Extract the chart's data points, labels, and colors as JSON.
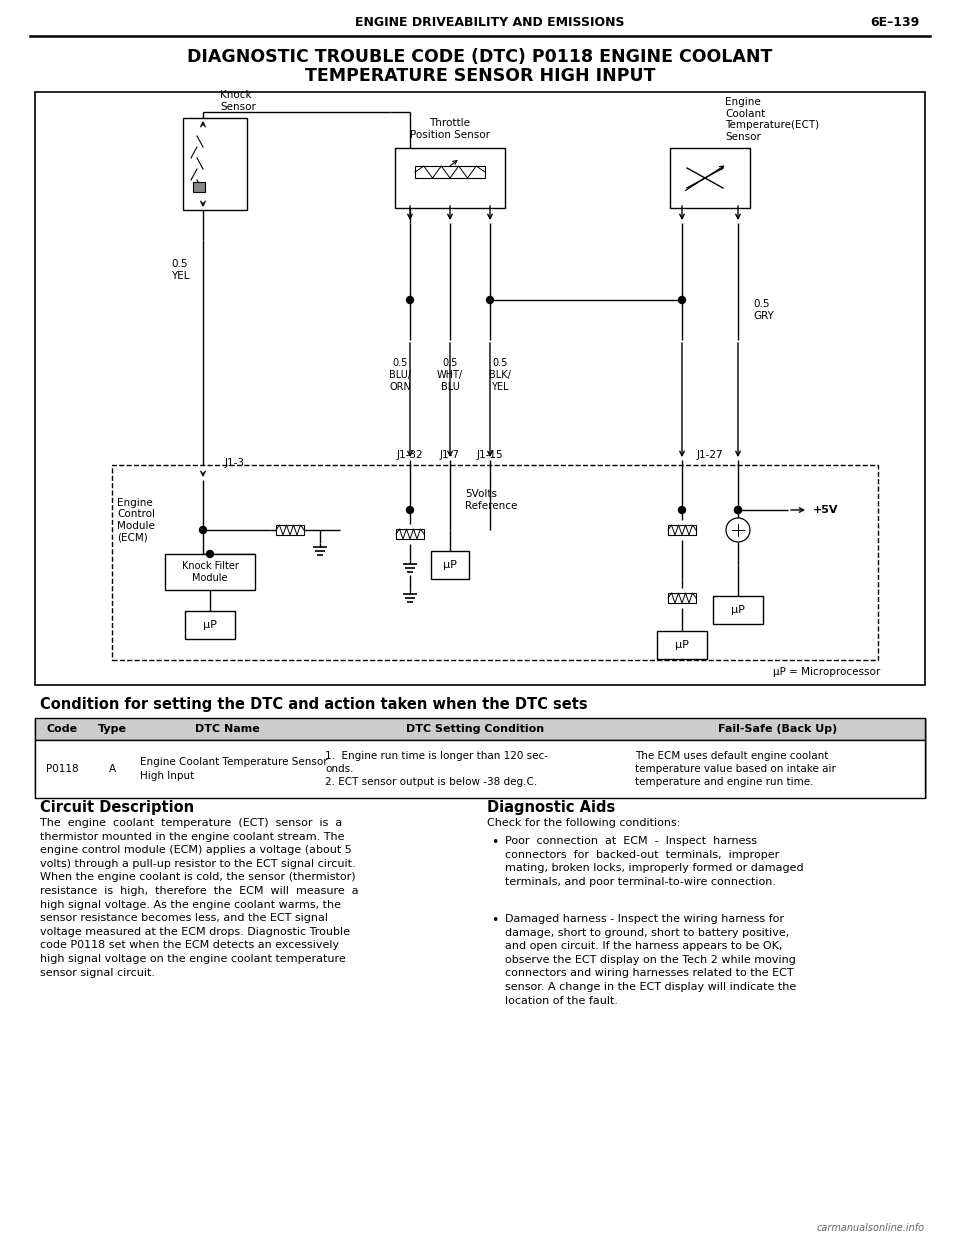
{
  "page_header_left": "ENGINE DRIVEABILITY AND EMISSIONS",
  "page_header_right": "6E–139",
  "main_title_line1": "DIAGNOSTIC TROUBLE CODE (DTC) P0118 ENGINE COOLANT",
  "main_title_line2": "TEMPERATURE SENSOR HIGH INPUT",
  "condition_heading": "Condition for setting the DTC and action taken when the DTC sets",
  "table_headers": [
    "Code",
    "Type",
    "DTC Name",
    "DTC Setting Condition",
    "Fail-Safe (Back Up)"
  ],
  "table_row": {
    "code": "P0118",
    "type": "A",
    "dtc_name": "Engine Coolant Temperature Sensor\nHigh Input",
    "setting_condition": "1.  Engine run time is longer than 120 sec-\nonds.\n2. ECT sensor output is below -38 deg.C.",
    "fail_safe": "The ECM uses default engine coolant\ntemperature value based on intake air\ntemperature and engine run time."
  },
  "circuit_desc_title": "Circuit Description",
  "circuit_desc_text": "The  engine  coolant  temperature  (ECT)  sensor  is  a\nthermistor mounted in the engine coolant stream. The\nengine control module (ECM) applies a voltage (about 5\nvolts) through a pull-up resistor to the ECT signal circuit.\nWhen the engine coolant is cold, the sensor (thermistor)\nresistance  is  high,  therefore  the  ECM  will  measure  a\nhigh signal voltage. As the engine coolant warms, the\nsensor resistance becomes less, and the ECT signal\nvoltage measured at the ECM drops. Diagnostic Trouble\ncode P0118 set when the ECM detects an excessively\nhigh signal voltage on the engine coolant temperature\nsensor signal circuit.",
  "diag_aids_title": "Diagnostic Aids",
  "diag_aids_intro": "Check for the following conditions:",
  "diag_aids_bullet1": "Poor  connection  at  ECM  -  Inspect  harness\nconnectors  for  backed-out  terminals,  improper\nmating, broken locks, improperly formed or damaged\nterminals, and poor terminal-to-wire connection.",
  "diag_aids_bullet2": "Damaged harness - Inspect the wiring harness for\ndamage, short to ground, short to battery positive,\nand open circuit. If the harness appears to be OK,\nobserve the ECT display on the Tech 2 while moving\nconnectors and wiring harnesses related to the ECT\nsensor. A change in the ECT display will indicate the\nlocation of the fault.",
  "watermark": "carmanualsonline.info",
  "bg_color": "#ffffff"
}
